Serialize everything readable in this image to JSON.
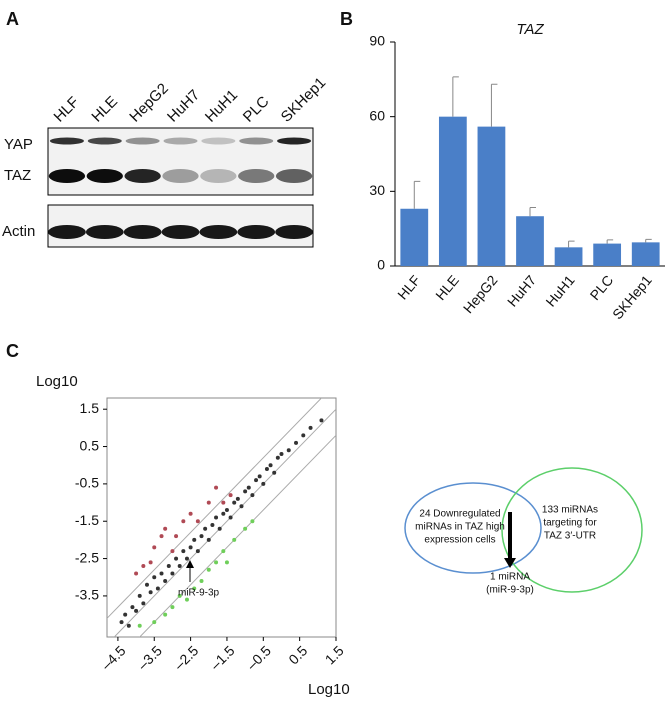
{
  "panel_labels": [
    "A",
    "B",
    "C"
  ],
  "blot": {
    "lanes": [
      "HLF",
      "HLE",
      "HepG2",
      "HuH7",
      "HuH1",
      "PLC",
      "SKHep1"
    ],
    "rows": [
      "YAP",
      "TAZ",
      "Actin"
    ]
  },
  "chart_data": [
    {
      "type": "bar",
      "title": "TAZ",
      "categories": [
        "HLF",
        "HLE",
        "HepG2",
        "HuH7",
        "HuH1",
        "PLC",
        "SKHep1"
      ],
      "values": [
        23,
        60,
        56,
        20,
        7.5,
        9,
        9.5
      ],
      "errors": [
        11,
        16,
        17,
        3.5,
        2.5,
        1.5,
        1.2
      ],
      "color": "#4a7fc8",
      "ylim": [
        0,
        90
      ],
      "yticks": [
        0,
        30,
        60,
        90
      ]
    },
    {
      "type": "scatter",
      "x_label": "Log10",
      "y_label": "Log10",
      "annotation": "miR-9-3p",
      "xlim": [
        -4.8,
        1.5
      ],
      "ylim": [
        -4.6,
        1.8
      ],
      "xticks": [
        {
          "value": -4.5,
          "label": "–4.5"
        },
        {
          "value": -3.5,
          "label": "–3.5"
        },
        {
          "value": -2.5,
          "label": "–2.5"
        },
        {
          "value": -1.5,
          "label": "–1.5"
        },
        {
          "value": -0.5,
          "label": "–0.5"
        },
        0.5,
        1.5
      ],
      "yticks": [
        1.5,
        0.5,
        -0.5,
        -1.5,
        -2.5,
        -3.5
      ],
      "series": [
        {
          "color": "#333333",
          "x": [
            -4.4,
            -4.3,
            -4.2,
            -4.1,
            -4.0,
            -3.9,
            -3.8,
            -3.7,
            -3.6,
            -3.5,
            -3.4,
            -3.3,
            -3.2,
            -3.1,
            -3.0,
            -2.9,
            -2.8,
            -2.7,
            -2.6,
            -2.5,
            -2.4,
            -2.3,
            -2.2,
            -2.1,
            -2.0,
            -1.9,
            -1.8,
            -1.7,
            -1.6,
            -1.5,
            -1.4,
            -1.3,
            -1.2,
            -1.1,
            -1.0,
            -0.9,
            -0.8,
            -0.7,
            -0.6,
            -0.5,
            -0.4,
            -0.3,
            -0.2,
            -0.1,
            0.0,
            0.2,
            0.4,
            0.6,
            0.8,
            1.1
          ],
          "values": [
            -4.2,
            -4.0,
            -4.3,
            -3.8,
            -3.9,
            -3.5,
            -3.7,
            -3.2,
            -3.4,
            -3.0,
            -3.3,
            -2.9,
            -3.1,
            -2.7,
            -2.9,
            -2.5,
            -2.7,
            -2.3,
            -2.5,
            -2.2,
            -2.0,
            -2.3,
            -1.9,
            -1.7,
            -2.0,
            -1.6,
            -1.4,
            -1.7,
            -1.3,
            -1.2,
            -1.4,
            -1.0,
            -0.9,
            -1.1,
            -0.7,
            -0.6,
            -0.8,
            -0.4,
            -0.3,
            -0.5,
            -0.1,
            0.0,
            -0.2,
            0.2,
            0.3,
            0.4,
            0.6,
            0.8,
            1.0,
            1.2
          ]
        },
        {
          "color": "#b04a55",
          "x": [
            -4.0,
            -3.8,
            -3.6,
            -3.5,
            -3.3,
            -3.2,
            -3.0,
            -2.9,
            -2.7,
            -2.5,
            -2.3,
            -2.0,
            -1.8,
            -1.6,
            -1.4
          ],
          "values": [
            -2.9,
            -2.7,
            -2.6,
            -2.2,
            -1.9,
            -1.7,
            -2.3,
            -1.9,
            -1.5,
            -1.3,
            -1.5,
            -1.0,
            -0.6,
            -1.0,
            -0.8
          ]
        },
        {
          "color": "#6fcf5a",
          "x": [
            -3.9,
            -3.5,
            -3.2,
            -3.0,
            -2.8,
            -2.6,
            -2.4,
            -2.2,
            -2.0,
            -1.8,
            -1.6,
            -1.5,
            -1.3,
            -1.0,
            -0.8
          ],
          "values": [
            -4.3,
            -4.2,
            -4.0,
            -3.8,
            -3.5,
            -3.6,
            -3.3,
            -3.1,
            -2.8,
            -2.6,
            -2.3,
            -2.6,
            -2.0,
            -1.7,
            -1.5
          ]
        }
      ]
    }
  ],
  "venn": {
    "left": [
      "24 Downregulated",
      "miRNAs in TAZ high",
      "expression cells"
    ],
    "right": [
      "133 miRNAs",
      "targeting for",
      "TAZ 3′-UTR"
    ],
    "result": [
      "1 miRNA",
      "(miR-9-3p)"
    ]
  }
}
